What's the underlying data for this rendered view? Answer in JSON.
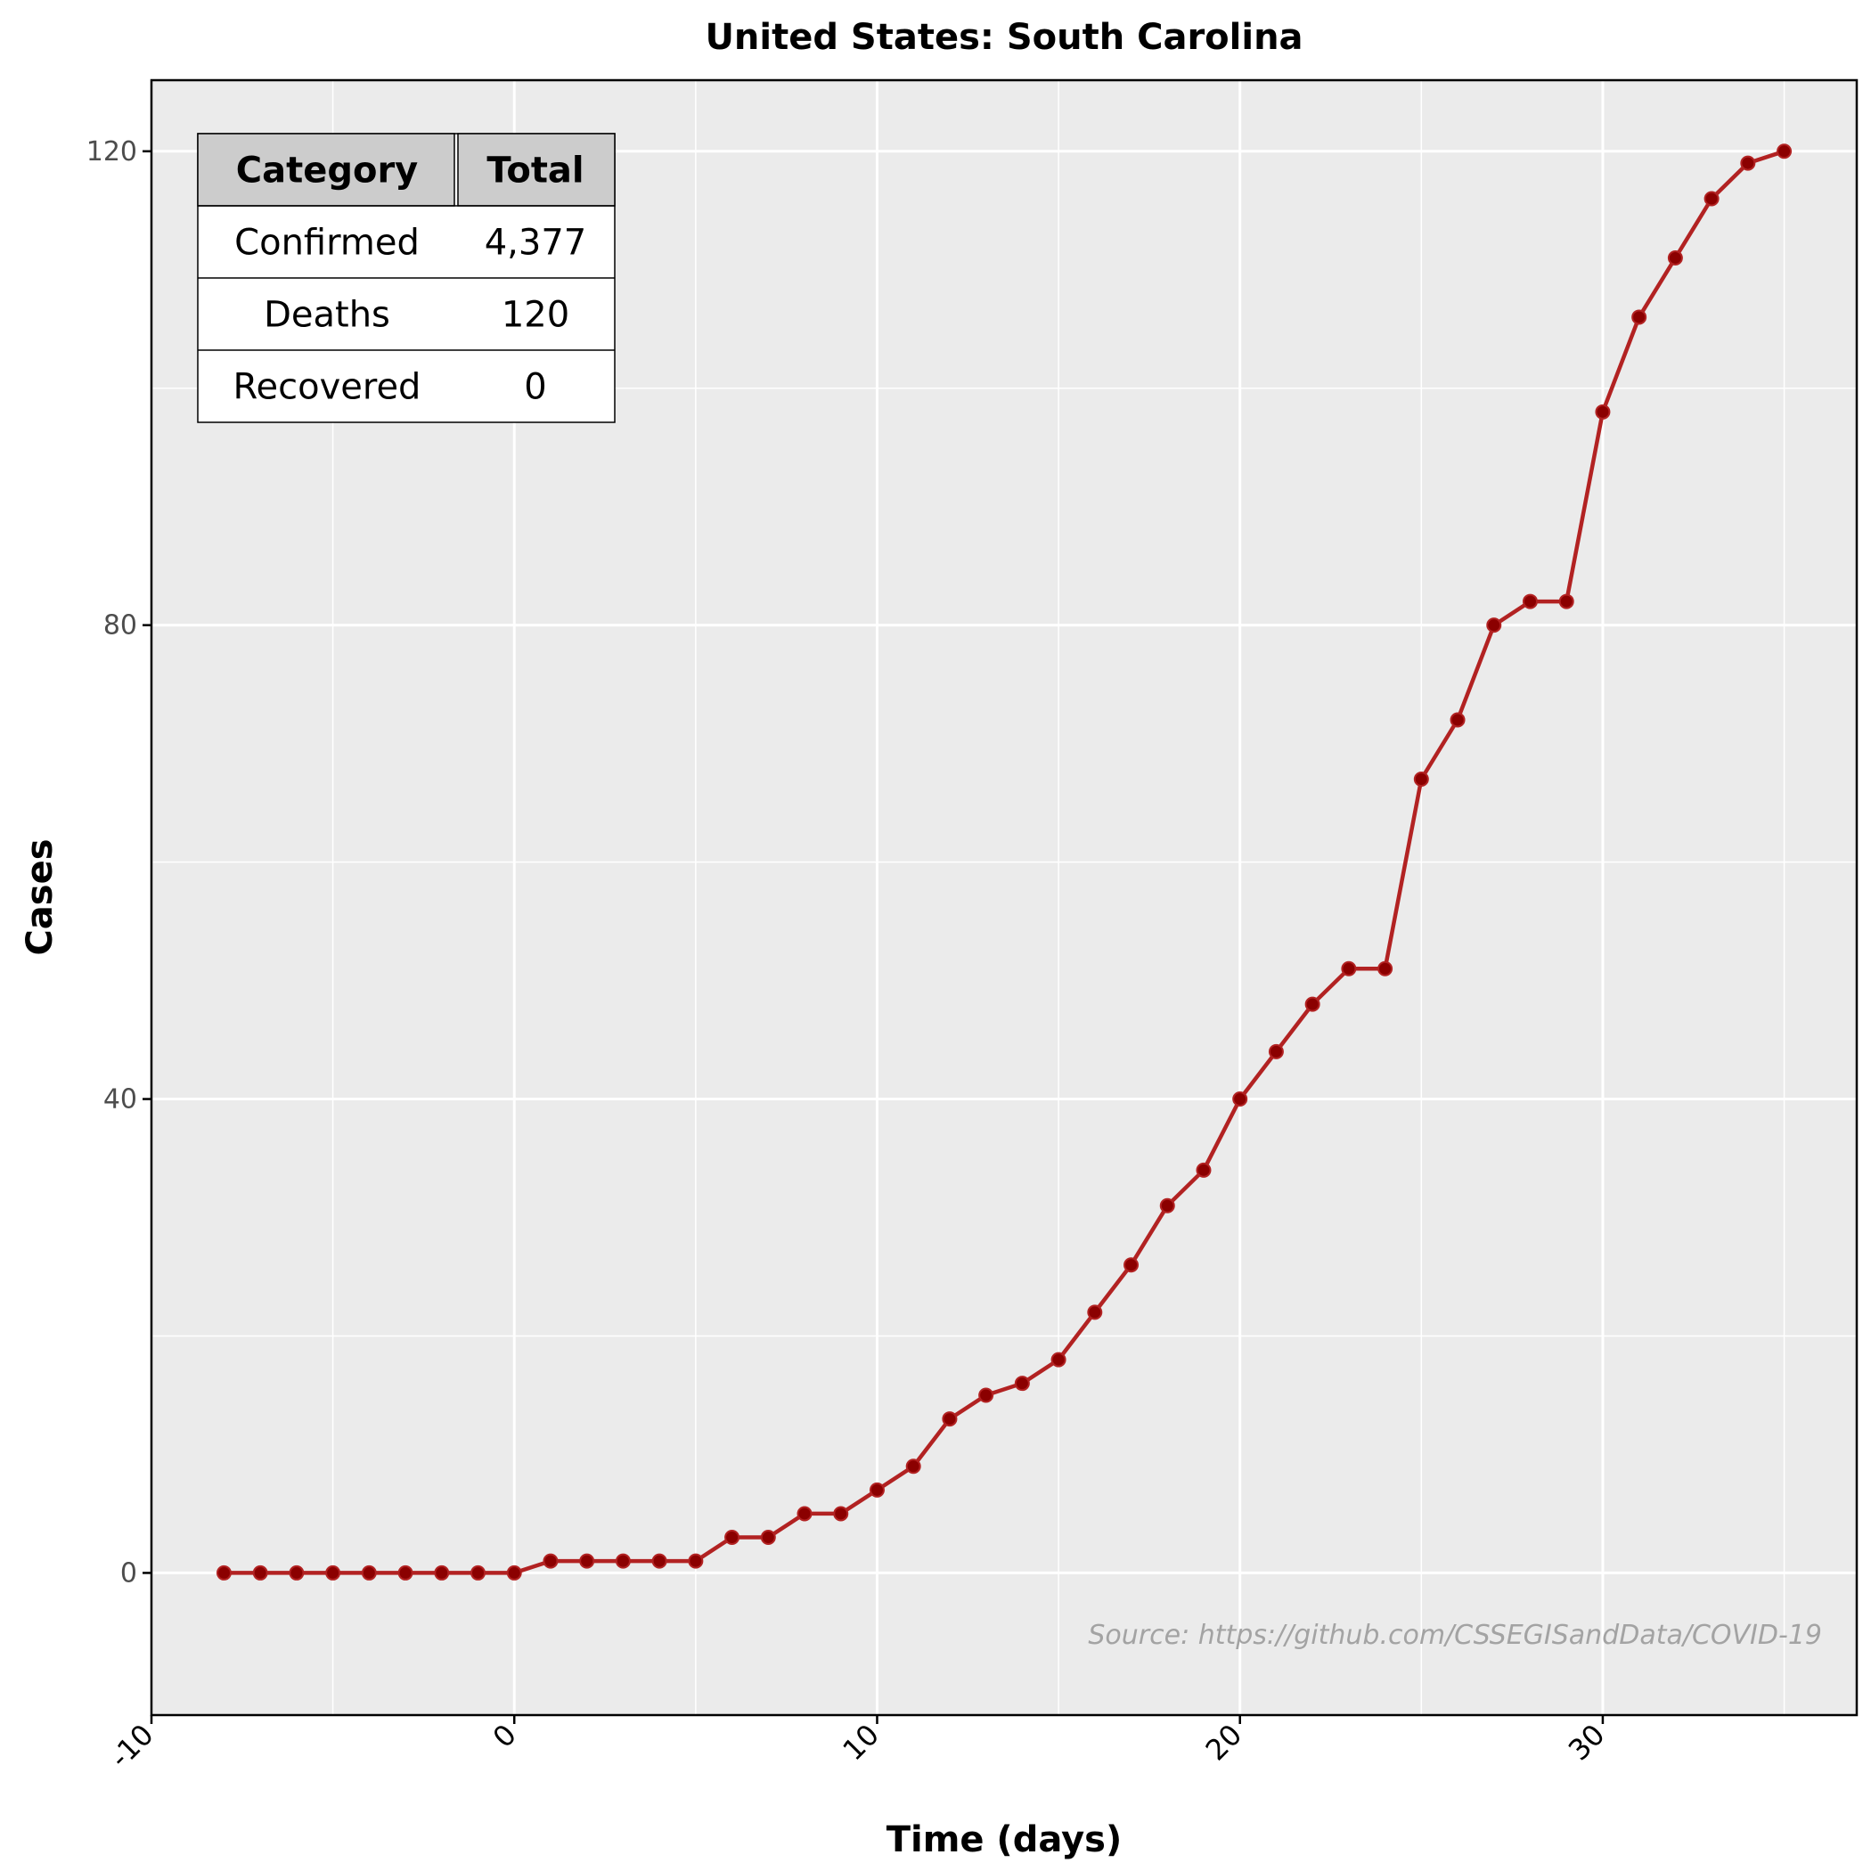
{
  "colors": {
    "panel_bg": "#ebebeb",
    "grid": "#ffffff",
    "line": "#b22222",
    "point": "#8b0000",
    "source_text": "#a3a3a3",
    "table_header_bg": "#cccccc"
  },
  "chart_data": {
    "type": "line",
    "title": "United States: South Carolina",
    "xlabel": "Time (days)",
    "ylabel": "Cases",
    "xlim": [
      -10,
      37
    ],
    "ylim": [
      -12,
      126
    ],
    "xticks": [
      "-10",
      "0",
      "10",
      "20",
      "30"
    ],
    "yticks": [
      "0",
      "40",
      "80",
      "120"
    ],
    "grid": true,
    "x": [
      -8,
      -7,
      -6,
      -5,
      -4,
      -3,
      -2,
      -1,
      0,
      1,
      2,
      3,
      4,
      5,
      6,
      7,
      8,
      9,
      10,
      11,
      12,
      13,
      14,
      15,
      16,
      17,
      18,
      19,
      20,
      21,
      22,
      23,
      24,
      25,
      26,
      27,
      28,
      29,
      30,
      31,
      32,
      33,
      34,
      35
    ],
    "series": [
      {
        "values": [
          0,
          0,
          0,
          0,
          0,
          0,
          0,
          0,
          0,
          1,
          1,
          1,
          1,
          1,
          3,
          3,
          5,
          5,
          7,
          9,
          13,
          15,
          16,
          18,
          22,
          26,
          31,
          34,
          40,
          44,
          48,
          51,
          51,
          67,
          72,
          80,
          82,
          82,
          98,
          106,
          111,
          116,
          119,
          120
        ]
      }
    ],
    "table": {
      "headers": [
        "Category",
        "Total"
      ],
      "rows": [
        [
          "Confirmed",
          "4,377"
        ],
        [
          "Deaths",
          "120"
        ],
        [
          "Recovered",
          "0"
        ]
      ]
    },
    "annotation": "Source: https://github.com/CSSEGISandData/COVID-19"
  }
}
